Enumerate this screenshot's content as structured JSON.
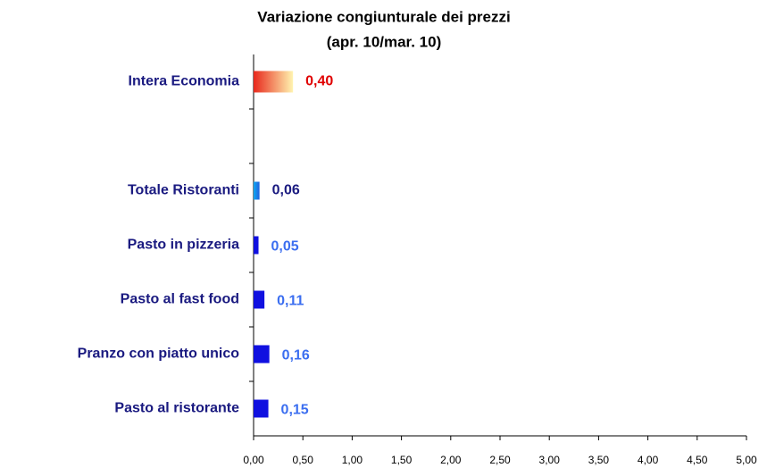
{
  "chart_data": {
    "type": "bar",
    "orientation": "horizontal",
    "title": [
      "Variazione congiunturale dei prezzi",
      "(apr. 10/mar. 10)"
    ],
    "categories": [
      "Intera Economia",
      null,
      "Totale Ristoranti",
      "Pasto in pizzeria",
      "Pasto al fast food",
      "Pranzo con piatto unico",
      "Pasto al ristorante"
    ],
    "values": [
      0.4,
      null,
      0.06,
      0.05,
      0.11,
      0.16,
      0.15
    ],
    "value_labels": [
      "0,40",
      null,
      "0,06",
      "0,05",
      "0,11",
      "0,16",
      "0,15"
    ],
    "colors": [
      [
        "#e8281c",
        "#fff4b0"
      ],
      null,
      [
        "#10a8f0",
        "#1e60e0"
      ],
      "#1010e0",
      "#1010e0",
      "#1010e0",
      "#1010e0"
    ],
    "label_colors": [
      "#e00000",
      null,
      "#1a1a80",
      "#3b6ef0",
      "#3b6ef0",
      "#3b6ef0",
      "#3b6ef0"
    ],
    "xlim": [
      0,
      5
    ],
    "xticks": [
      {
        "value": 0,
        "label": "0,00"
      },
      {
        "value": 0.5,
        "label": "0,50"
      },
      {
        "value": 1,
        "label": "1,00"
      },
      {
        "value": 1.5,
        "label": "1,50"
      },
      {
        "value": 2,
        "label": "2,00"
      },
      {
        "value": 2.5,
        "label": "2,50"
      },
      {
        "value": 3,
        "label": "3,00"
      },
      {
        "value": 3.5,
        "label": "3,50"
      },
      {
        "value": 4,
        "label": "4,00"
      },
      {
        "value": 4.5,
        "label": "4,50"
      },
      {
        "value": 5,
        "label": "5,00"
      }
    ],
    "grid": false
  }
}
